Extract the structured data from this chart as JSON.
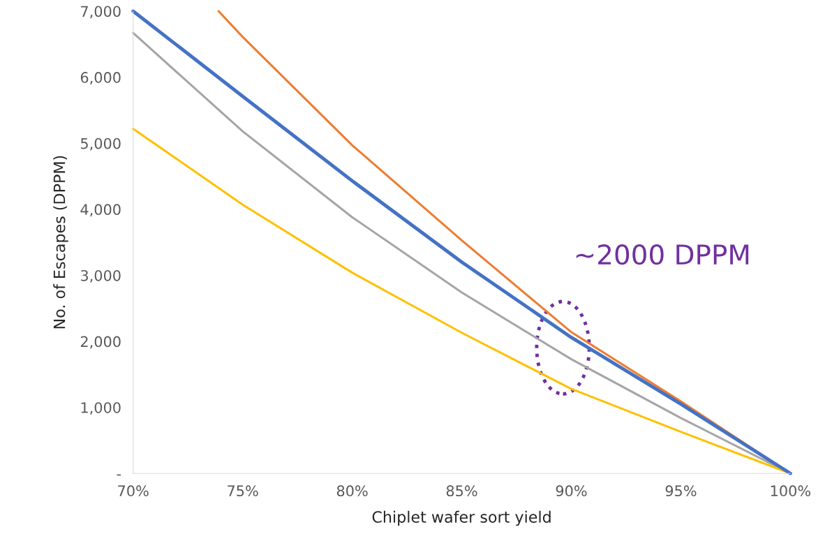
{
  "chart_data": {
    "type": "line",
    "xlabel": "Chiplet wafer sort yield",
    "ylabel": "No. of Escapes (DPPM)",
    "x": [
      70,
      75,
      80,
      85,
      90,
      95,
      100
    ],
    "series": [
      {
        "color": "#ed7d31",
        "x": [
          73.9,
          75,
          80,
          85,
          90,
          95,
          100
        ],
        "values": [
          7000,
          6610,
          4970,
          3530,
          2140,
          1090,
          0
        ]
      },
      {
        "color": "#a5a5a5",
        "values": [
          6670,
          5180,
          3880,
          2740,
          1730,
          840,
          0
        ]
      },
      {
        "color": "#ffc000",
        "values": [
          5220,
          4070,
          3040,
          2130,
          1280,
          630,
          0
        ]
      },
      {
        "color": "#4472c4",
        "values": [
          7000,
          5710,
          4430,
          3200,
          2060,
          1050,
          0
        ]
      }
    ],
    "xlim": [
      70,
      100
    ],
    "ylim": [
      0,
      7000
    ],
    "xticks": [
      {
        "value": 70,
        "label": "70%"
      },
      {
        "value": 75,
        "label": "75%"
      },
      {
        "value": 80,
        "label": "80%"
      },
      {
        "value": 85,
        "label": "85%"
      },
      {
        "value": 90,
        "label": "90%"
      },
      {
        "value": 95,
        "label": "95%"
      },
      {
        "value": 100,
        "label": "100%"
      }
    ],
    "yticks": [
      {
        "value": 0,
        "label": "-"
      },
      {
        "value": 1000,
        "label": "1,000"
      },
      {
        "value": 2000,
        "label": "2,000"
      },
      {
        "value": 3000,
        "label": "3,000"
      },
      {
        "value": 4000,
        "label": "4,000"
      },
      {
        "value": 5000,
        "label": "5,000"
      },
      {
        "value": 6000,
        "label": "6,000"
      },
      {
        "value": 7000,
        "label": "7,000"
      }
    ],
    "annotations": [
      "~2000 DPPM"
    ],
    "grid": false,
    "legend": false,
    "marker": "none",
    "line_style": "solid"
  }
}
